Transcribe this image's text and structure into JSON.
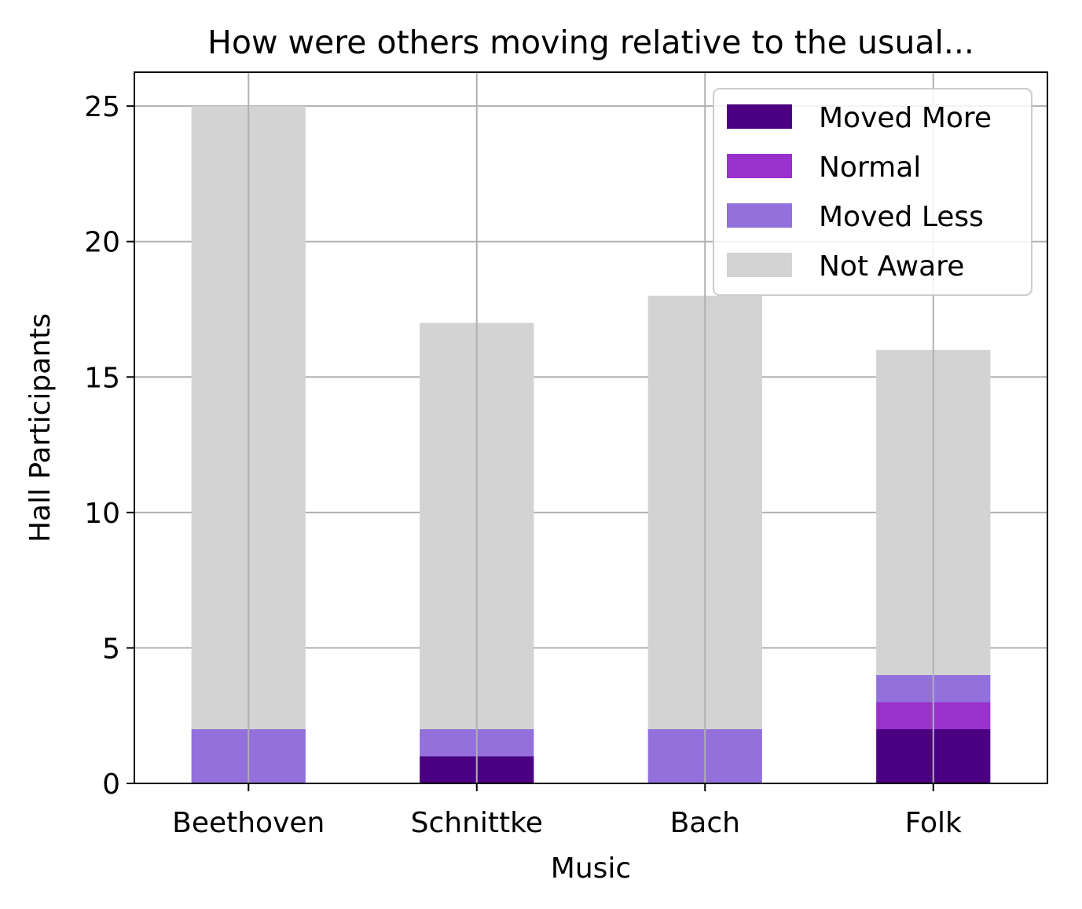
{
  "chart_data": {
    "type": "bar",
    "stacked": true,
    "title": "How were others moving relative to the usual...",
    "xlabel": "Music",
    "ylabel": "Hall Participants",
    "categories": [
      "Beethoven",
      "Schnittke",
      "Bach",
      "Folk"
    ],
    "series": [
      {
        "name": "Moved More",
        "color": "#4b0082",
        "values": [
          0,
          1,
          0,
          2
        ]
      },
      {
        "name": "Normal",
        "color": "#9932cc",
        "values": [
          0,
          0,
          0,
          1
        ]
      },
      {
        "name": "Moved Less",
        "color": "#9370db",
        "values": [
          2,
          1,
          2,
          1
        ]
      },
      {
        "name": "Not Aware",
        "color": "#d3d3d3",
        "values": [
          23,
          15,
          16,
          12
        ]
      }
    ],
    "ylim": [
      0,
      26.25
    ],
    "yticks": [
      0,
      5,
      10,
      15,
      20,
      25
    ],
    "grid": true,
    "legend_position": "top-right"
  }
}
